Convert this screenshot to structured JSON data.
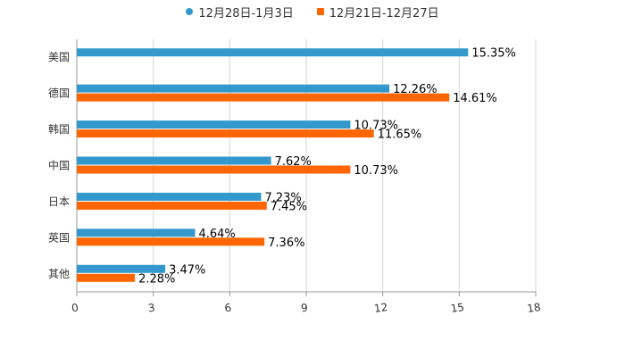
{
  "chart_data": {
    "type": "bar",
    "orientation": "horizontal",
    "categories": [
      "美国",
      "德国",
      "韩国",
      "中国",
      "日本",
      "英国",
      "其他"
    ],
    "series": [
      {
        "name": "12月28日-1月3日",
        "color": "#3399CC",
        "marker": "circle",
        "values": [
          15.35,
          12.26,
          10.73,
          7.62,
          7.23,
          4.64,
          3.47
        ],
        "labels": [
          "15.35%",
          "12.26%",
          "10.73%",
          "7.62%",
          "7.23%",
          "4.64%",
          "3.47%"
        ]
      },
      {
        "name": "12月21日-12月27日",
        "color": "#FF6600",
        "marker": "square",
        "values": [
          null,
          14.61,
          11.65,
          10.73,
          7.45,
          7.36,
          2.28
        ],
        "labels": [
          null,
          "14.61%",
          "11.65%",
          "10.73%",
          "7.45%",
          "7.36%",
          "2.28%"
        ]
      }
    ],
    "xlim": [
      0,
      18
    ],
    "xticks": [
      "0",
      "3",
      "6",
      "9",
      "12",
      "15",
      "18"
    ],
    "grid": true,
    "legend": "top-center",
    "title": "",
    "xlabel": "",
    "ylabel": ""
  }
}
